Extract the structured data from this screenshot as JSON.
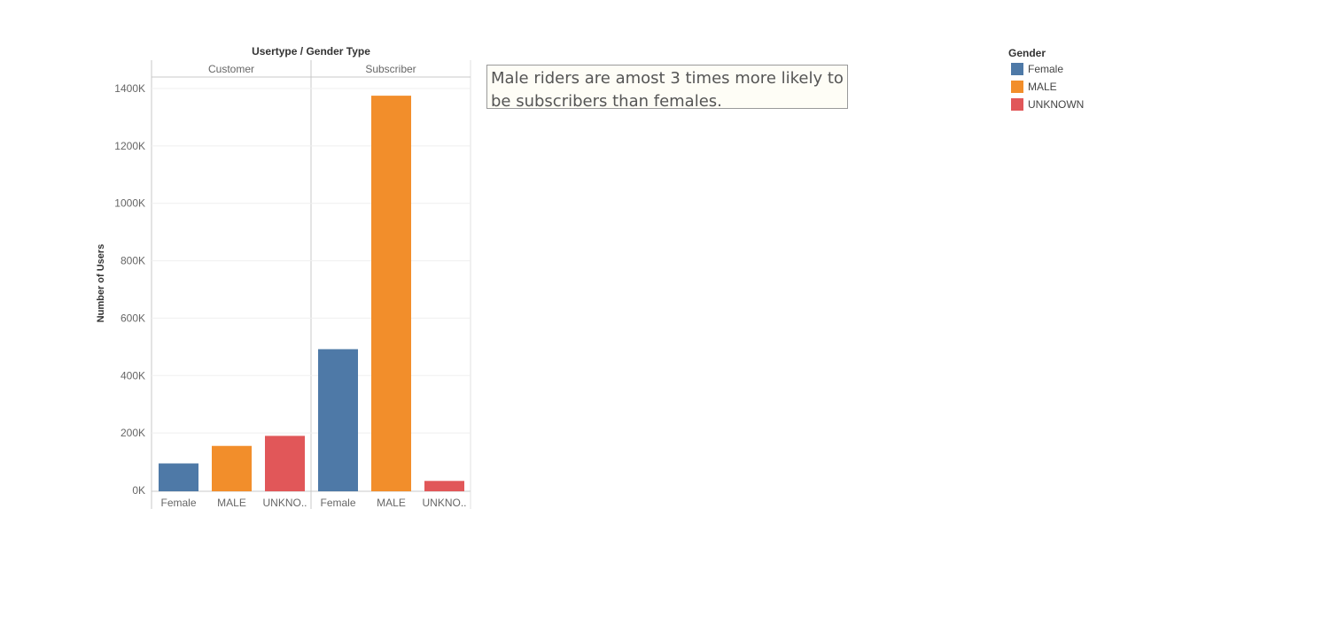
{
  "chart_data": {
    "type": "bar",
    "title": "Usertype / Gender Type",
    "ylabel": "Number of Users",
    "xlabel": "",
    "ylim": [
      0,
      1440000
    ],
    "yticks": [
      0,
      200000,
      400000,
      600000,
      800000,
      1000000,
      1200000,
      1400000
    ],
    "ytick_labels": [
      "0K",
      "200K",
      "400K",
      "600K",
      "800K",
      "1000K",
      "1200K",
      "1400K"
    ],
    "grid": true,
    "legend_position": "top-right",
    "panes": [
      {
        "header": "Customer",
        "categories": [
          "Female",
          "MALE",
          "UNKNO.."
        ],
        "values": [
          94000,
          155000,
          190000
        ]
      },
      {
        "header": "Subscriber",
        "categories": [
          "Female",
          "MALE",
          "UNKNO.."
        ],
        "values": [
          492000,
          1375000,
          33000
        ]
      }
    ],
    "series_colors": {
      "Female": "#4e79a7",
      "MALE": "#f28e2b",
      "UNKNOWN": "#e15759"
    }
  },
  "annotation": {
    "text": "Male riders are amost 3 times more likely to be subscribers than females."
  },
  "legend": {
    "title": "Gender",
    "items": [
      {
        "label": "Female",
        "color": "#4e79a7"
      },
      {
        "label": "MALE",
        "color": "#f28e2b"
      },
      {
        "label": "UNKNOWN",
        "color": "#e15759"
      }
    ]
  }
}
